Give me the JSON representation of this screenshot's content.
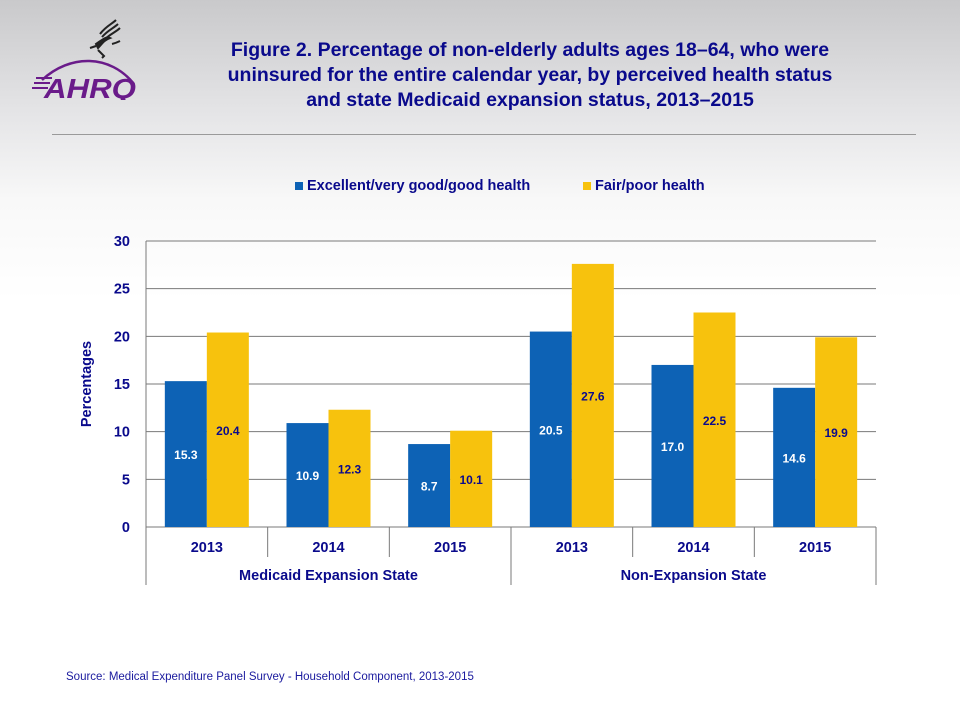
{
  "logo": {
    "hhs_icon": "hhs-eagle-icon",
    "brand_text": "AHRQ",
    "brand_color": "#6a1b8a"
  },
  "title": "Figure 2. Percentage of non-elderly adults ages 18–64, who were uninsured for the entire calendar year, by perceived health status and state Medicaid expansion status, 2013–2015",
  "source": "Source:  Medical Expenditure Panel Survey  - Household Component, 2013-2015",
  "chart_data": {
    "type": "bar",
    "title": "Figure 2. Percentage of non-elderly adults ages 18–64, who were uninsured for the entire calendar year, by perceived health status and state Medicaid expansion status, 2013–2015",
    "xlabel": "",
    "ylabel": "Percentages",
    "ylim": [
      0,
      30
    ],
    "yticks": [
      0,
      5,
      10,
      15,
      20,
      25,
      30
    ],
    "grid": true,
    "legend_position": "top",
    "groups": [
      {
        "label": "Medicaid Expansion State",
        "categories": [
          "2013",
          "2014",
          "2015"
        ]
      },
      {
        "label": "Non-Expansion State",
        "categories": [
          "2013",
          "2014",
          "2015"
        ]
      }
    ],
    "categories": [
      "2013",
      "2014",
      "2015",
      "2013",
      "2014",
      "2015"
    ],
    "series": [
      {
        "name": "Excellent/very good/good health",
        "color": "#0d62b5",
        "label_color": "#ffffff",
        "values": [
          15.3,
          10.9,
          8.7,
          20.5,
          17.0,
          14.6
        ]
      },
      {
        "name": "Fair/poor health",
        "color": "#f7c20d",
        "label_color": "#0a0a8c",
        "values": [
          20.4,
          12.3,
          10.1,
          27.6,
          22.5,
          19.9
        ]
      }
    ]
  }
}
